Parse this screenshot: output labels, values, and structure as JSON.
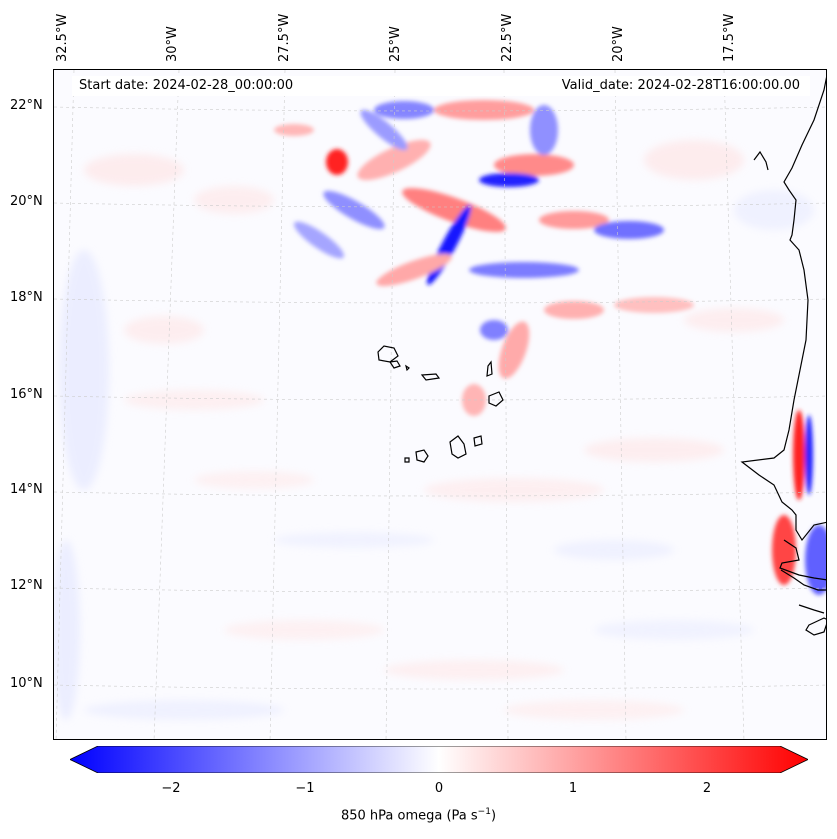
{
  "map": {
    "start_date": "Start date: 2024-02-28_00:00:00",
    "valid_date": "Valid_date: 2024-02-28T16:00:00.00",
    "lon_labels": [
      "32.5°W",
      "30°W",
      "27.5°W",
      "25°W",
      "22.5°W",
      "20°W",
      "17.5°W"
    ],
    "lat_labels": [
      "22°N",
      "20°N",
      "18°N",
      "16°N",
      "14°N",
      "12°N",
      "10°N"
    ],
    "colors": {
      "negative": "#0000ff",
      "positive": "#ff0000",
      "neutral": "#ffffff",
      "coast": "#000000"
    }
  },
  "colorbar": {
    "ticks": [
      "−2",
      "−1",
      "0",
      "1",
      "2"
    ],
    "label": "850 hPa omega (Pa s",
    "label_exponent": "−1",
    "label_suffix": ")",
    "range": [
      -2.5,
      2.5
    ]
  }
}
